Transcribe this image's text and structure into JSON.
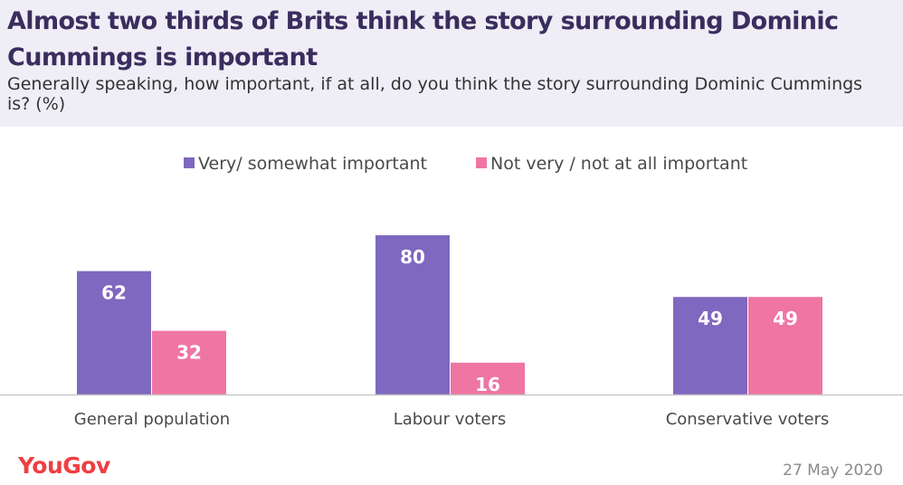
{
  "header": {
    "title": "Almost two thirds of Brits think the story surrounding Dominic Cummings is important",
    "subtitle": "Generally speaking, how important, if at all, do you think the story surrounding Dominic Cummings is? (%)"
  },
  "footer": {
    "brand": "YouGov",
    "date": "27 May 2020"
  },
  "chart_data": {
    "type": "bar",
    "title": "Almost two thirds of Brits think the story surrounding Dominic Cummings is important",
    "subtitle": "Generally speaking, how important, if at all, do you think the story surrounding Dominic Cummings is? (%)",
    "categories": [
      "General  population",
      "Labour voters",
      "Conservative voters"
    ],
    "series": [
      {
        "name": "Very/ somewhat important",
        "values": [
          62,
          80,
          49
        ],
        "color": "#7f68c0"
      },
      {
        "name": "Not very / not at all important",
        "values": [
          32,
          16,
          49
        ],
        "color": "#ef75a3"
      }
    ],
    "xlabel": "",
    "ylabel": "",
    "ylim": [
      0,
      100
    ],
    "grid": false,
    "legend": "top",
    "data_labels": true
  }
}
